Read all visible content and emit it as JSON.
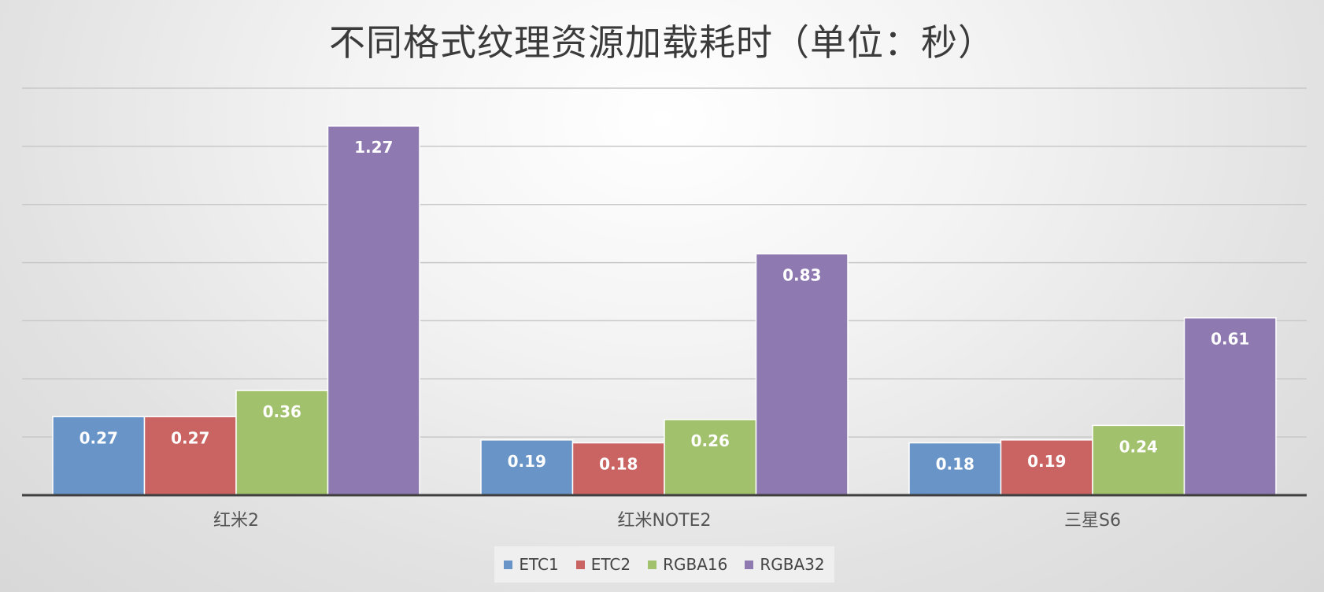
{
  "chart_data": {
    "type": "bar",
    "title": "不同格式纹理资源加载耗时（单位：秒）",
    "categories": [
      "红米2",
      "红米NOTE2",
      "三星S6"
    ],
    "series": [
      {
        "name": "ETC1",
        "color": "#6894c8",
        "values": [
          0.27,
          0.19,
          0.18
        ]
      },
      {
        "name": "ETC2",
        "color": "#c96462",
        "values": [
          0.27,
          0.18,
          0.19
        ]
      },
      {
        "name": "RGBA16",
        "color": "#a2c16c",
        "values": [
          0.36,
          0.26,
          0.24
        ]
      },
      {
        "name": "RGBA32",
        "color": "#8f79b1",
        "values": [
          1.27,
          0.83,
          0.61
        ]
      }
    ],
    "ylim": [
      0,
      1.4
    ],
    "ytick_step": 0.2,
    "grid": true,
    "legend_position": "bottom",
    "data_labels": true
  }
}
